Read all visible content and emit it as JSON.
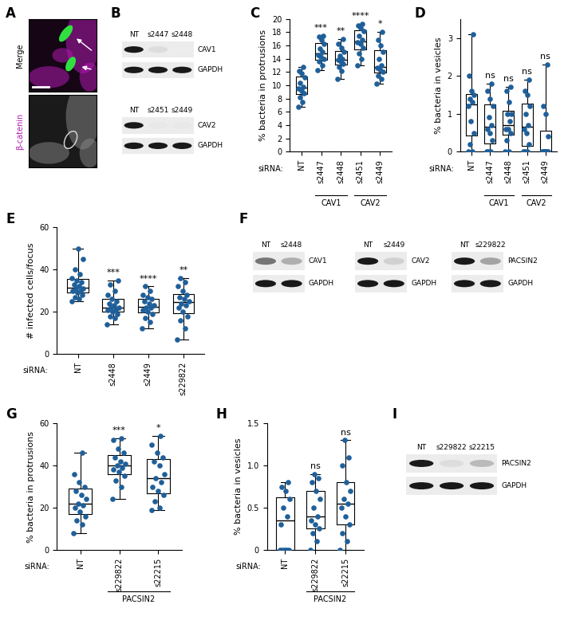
{
  "chart_data": [
    {
      "type": "box",
      "title": "C",
      "y_label": "% bacteria in protrusions",
      "x_label": "siRNA:",
      "categories": [
        "NT",
        "s2447",
        "s2448",
        "s2451",
        "s2449"
      ],
      "values": [
        [
          6.8,
          7.5,
          8.2,
          8.8,
          9.2,
          9.5,
          9.8,
          10.4,
          11.2,
          11.8,
          12.2,
          12.8
        ],
        [
          12.3,
          13.0,
          13.6,
          14.0,
          14.3,
          14.6,
          15.0,
          15.5,
          16.2,
          16.8,
          17.3,
          17.5
        ],
        [
          11.0,
          12.2,
          12.8,
          13.3,
          13.6,
          13.8,
          14.0,
          14.4,
          15.0,
          15.6,
          16.3,
          17.0
        ],
        [
          13.0,
          14.0,
          14.8,
          15.6,
          16.2,
          16.5,
          16.8,
          17.5,
          18.2,
          18.6,
          19.0,
          19.2
        ],
        [
          10.2,
          11.0,
          11.5,
          12.0,
          12.4,
          12.6,
          13.0,
          14.0,
          15.0,
          16.0,
          16.8,
          18.0
        ]
      ],
      "annotations": [
        null,
        "***",
        "**",
        "****",
        "*"
      ],
      "groups": [
        {
          "label": "CAV1",
          "categories": [
            "s2447",
            "s2448"
          ]
        },
        {
          "label": "CAV2",
          "categories": [
            "s2451",
            "s2449"
          ]
        }
      ],
      "color": "#1f5f99",
      "ylim": [
        0,
        20
      ],
      "yticks": [
        0,
        2,
        4,
        6,
        8,
        10,
        12,
        14,
        16,
        18,
        20
      ]
    },
    {
      "type": "box",
      "title": "D",
      "y_label": "% bacteria in vesicles",
      "x_label": "siRNA:",
      "categories": [
        "NT",
        "s2447",
        "s2448",
        "s2451",
        "s2449"
      ],
      "values": [
        [
          0,
          0,
          0.2,
          0.5,
          0.8,
          1.2,
          1.3,
          1.4,
          1.5,
          1.6,
          2.0,
          3.1
        ],
        [
          0,
          0,
          0,
          0.3,
          0.5,
          0.6,
          0.7,
          0.9,
          1.2,
          1.4,
          1.6,
          1.8
        ],
        [
          0,
          0,
          0.3,
          0.5,
          0.6,
          0.6,
          0.8,
          1.0,
          1.0,
          1.3,
          1.6,
          1.7
        ],
        [
          0,
          0,
          0,
          0.2,
          0.5,
          0.6,
          0.7,
          1.0,
          1.2,
          1.5,
          1.6,
          1.9
        ],
        [
          0,
          0,
          0,
          0,
          0,
          0,
          0,
          0,
          0.4,
          1.0,
          1.2,
          2.3
        ]
      ],
      "annotations": [
        null,
        "ns",
        "ns",
        "ns",
        "ns"
      ],
      "groups": [
        {
          "label": "CAV1",
          "categories": [
            "s2447",
            "s2448"
          ]
        },
        {
          "label": "CAV2",
          "categories": [
            "s2451",
            "s2449"
          ]
        }
      ],
      "color": "#1f5f99",
      "ylim": [
        0,
        3.5
      ],
      "yticks": [
        0,
        1,
        2,
        3
      ]
    },
    {
      "type": "box",
      "title": "E",
      "y_label": "# infected cells/focus",
      "x_label": "siRNA:",
      "categories": [
        "NT",
        "s2448",
        "s2449",
        "s229822"
      ],
      "values": [
        [
          25,
          26,
          27,
          28,
          29,
          30,
          30,
          31,
          31,
          32,
          33,
          34,
          35,
          36,
          38,
          40,
          45,
          50
        ],
        [
          14,
          17,
          18,
          19,
          20,
          21,
          21,
          22,
          22,
          23,
          24,
          25,
          26,
          28,
          30,
          33,
          35
        ],
        [
          12,
          15,
          17,
          19,
          20,
          21,
          22,
          22,
          23,
          24,
          25,
          26,
          27,
          28,
          30,
          32
        ],
        [
          7,
          12,
          16,
          18,
          20,
          22,
          23,
          24,
          25,
          26,
          27,
          28,
          30,
          32,
          34,
          36
        ]
      ],
      "annotations": [
        null,
        "***",
        "****",
        "**"
      ],
      "color": "#1f5f99",
      "ylim": [
        0,
        60
      ],
      "yticks": [
        0,
        20,
        40,
        60
      ]
    },
    {
      "type": "box",
      "title": "G",
      "y_label": "% bacteria in protrusions",
      "x_label": "siRNA:",
      "categories": [
        "NT",
        "s229822",
        "s22215"
      ],
      "values": [
        [
          8,
          12,
          14,
          16,
          18,
          20,
          21,
          22,
          24,
          26,
          28,
          30,
          32,
          36,
          46
        ],
        [
          24,
          30,
          33,
          35,
          37,
          38,
          39,
          40,
          41,
          42,
          44,
          46,
          48,
          52,
          53
        ],
        [
          19,
          20,
          23,
          26,
          28,
          30,
          32,
          34,
          36,
          40,
          42,
          44,
          46,
          50,
          54
        ]
      ],
      "annotations": [
        null,
        "***",
        "*"
      ],
      "groups": [
        {
          "label": "PACSIN2",
          "categories": [
            "s229822",
            "s22215"
          ]
        }
      ],
      "color": "#1f5f99",
      "ylim": [
        0,
        60
      ],
      "yticks": [
        0,
        20,
        40,
        60
      ]
    },
    {
      "type": "box",
      "title": "H",
      "y_label": "% bacteria in vesicles",
      "x_label": "siRNA:",
      "categories": [
        "NT",
        "s229822",
        "s22215"
      ],
      "values": [
        [
          0,
          0,
          0,
          0,
          0,
          0.3,
          0.4,
          0.5,
          0.6,
          0.7,
          0.75,
          0.8
        ],
        [
          0,
          0.1,
          0.2,
          0.25,
          0.3,
          0.35,
          0.4,
          0.5,
          0.6,
          0.7,
          0.8,
          0.85,
          0.9
        ],
        [
          0,
          0.1,
          0.2,
          0.3,
          0.4,
          0.5,
          0.55,
          0.6,
          0.7,
          0.8,
          1.0,
          1.1,
          1.3
        ]
      ],
      "annotations": [
        null,
        "ns",
        "ns"
      ],
      "groups": [
        {
          "label": "PACSIN2",
          "categories": [
            "s229822",
            "s22215"
          ]
        }
      ],
      "color": "#1f5f99",
      "ylim": [
        0,
        1.5
      ],
      "yticks": [
        0,
        0.5,
        {
          "value": 1,
          "label": "1.0"
        },
        1.5
      ]
    }
  ],
  "image": {
    "title": "A",
    "labels": [
      "Merge",
      "β-catenin"
    ]
  },
  "blots": [
    {
      "title": "B",
      "sets": [
        {
          "lanes": [
            "NT",
            "s2447",
            "s2448"
          ],
          "rows": [
            {
              "label": "CAV1",
              "bands": [
                1,
                0.15,
                0.08
              ]
            },
            {
              "label": "GAPDH",
              "bands": [
                1,
                1,
                1
              ]
            }
          ]
        },
        {
          "lanes": [
            "NT",
            "s2451",
            "s2449"
          ],
          "rows": [
            {
              "label": "CAV2",
              "bands": [
                1,
                0.1,
                0.1
              ]
            },
            {
              "label": "GAPDH",
              "bands": [
                1,
                1,
                1
              ]
            }
          ]
        }
      ]
    },
    {
      "title": "F",
      "sets": [
        {
          "lanes": [
            "NT",
            "s2448"
          ],
          "rows": [
            {
              "label": "CAV1",
              "bands": [
                0.6,
                0.35
              ]
            },
            {
              "label": "GAPDH",
              "bands": [
                1,
                1
              ]
            }
          ]
        },
        {
          "lanes": [
            "NT",
            "s2449"
          ],
          "rows": [
            {
              "label": "CAV2",
              "bands": [
                1,
                0.2
              ]
            },
            {
              "label": "GAPDH",
              "bands": [
                1,
                1
              ]
            }
          ]
        },
        {
          "lanes": [
            "NT",
            "s229822"
          ],
          "rows": [
            {
              "label": "PACSIN2",
              "bands": [
                1,
                0.4
              ]
            },
            {
              "label": "GAPDH",
              "bands": [
                1,
                1
              ]
            }
          ]
        }
      ]
    },
    {
      "title": "I",
      "sets": [
        {
          "lanes": [
            "NT",
            "s229822",
            "s22215"
          ],
          "rows": [
            {
              "label": "PACSIN2",
              "bands": [
                1,
                0.15,
                0.3
              ]
            },
            {
              "label": "GAPDH",
              "bands": [
                1,
                1,
                1
              ]
            }
          ]
        }
      ]
    }
  ]
}
